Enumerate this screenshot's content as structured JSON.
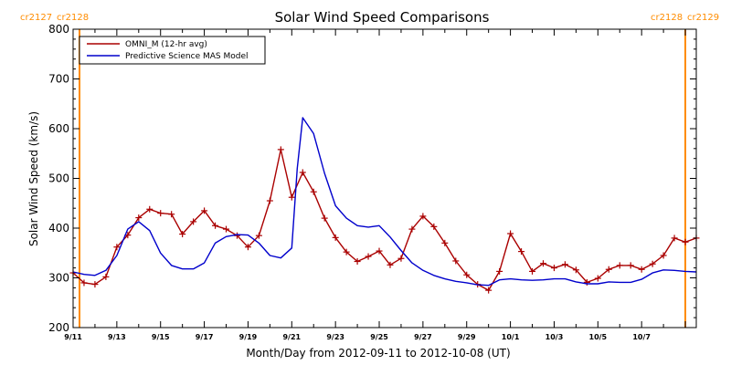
{
  "chart_data": {
    "type": "line",
    "title": "Solar Wind Speed Comparisons",
    "xlabel": "Month/Day from 2012-09-11 to 2012-10-08 (UT)",
    "ylabel": "Solar Wind Speed (km/s)",
    "ylim": [
      200,
      800
    ],
    "yticks": [
      200,
      300,
      400,
      500,
      600,
      700,
      800
    ],
    "xlim": [
      "2012-09-11 00:00",
      "2012-10-09 12:00"
    ],
    "xticks": [
      {
        "x": "2012-09-11",
        "label": "9/11"
      },
      {
        "x": "2012-09-13",
        "label": "9/13"
      },
      {
        "x": "2012-09-15",
        "label": "9/15"
      },
      {
        "x": "2012-09-17",
        "label": "9/17"
      },
      {
        "x": "2012-09-19",
        "label": "9/19"
      },
      {
        "x": "2012-09-21",
        "label": "9/21"
      },
      {
        "x": "2012-09-23",
        "label": "9/23"
      },
      {
        "x": "2012-09-25",
        "label": "9/25"
      },
      {
        "x": "2012-09-27",
        "label": "9/27"
      },
      {
        "x": "2012-09-29",
        "label": "9/29"
      },
      {
        "x": "2012-10-01",
        "label": "10/1"
      },
      {
        "x": "2012-10-03",
        "label": "10/3"
      },
      {
        "x": "2012-10-05",
        "label": "10/5"
      },
      {
        "x": "2012-10-07",
        "label": "10/7"
      }
    ],
    "legend_position": "top-left",
    "carrington_markers": [
      {
        "x": "2012-09-11 00:00",
        "labels": [
          "cr2127",
          "cr2128"
        ],
        "side": "left"
      },
      {
        "x": "2012-10-09 12:00",
        "labels": [
          "cr2128",
          "cr2129"
        ],
        "side": "right"
      }
    ],
    "series": [
      {
        "name": "OMNI_M (12-hr avg)",
        "color": "#aa0000",
        "marker": "plus",
        "x": [
          "2012-09-11 00:00",
          "2012-09-11 12:00",
          "2012-09-12 00:00",
          "2012-09-12 12:00",
          "2012-09-13 00:00",
          "2012-09-13 12:00",
          "2012-09-14 00:00",
          "2012-09-14 12:00",
          "2012-09-15 00:00",
          "2012-09-15 12:00",
          "2012-09-16 00:00",
          "2012-09-16 12:00",
          "2012-09-17 00:00",
          "2012-09-17 12:00",
          "2012-09-18 00:00",
          "2012-09-18 12:00",
          "2012-09-19 00:00",
          "2012-09-19 12:00",
          "2012-09-20 00:00",
          "2012-09-20 12:00",
          "2012-09-21 00:00",
          "2012-09-21 12:00",
          "2012-09-22 00:00",
          "2012-09-22 12:00",
          "2012-09-23 00:00",
          "2012-09-23 12:00",
          "2012-09-24 00:00",
          "2012-09-24 12:00",
          "2012-09-25 00:00",
          "2012-09-25 12:00",
          "2012-09-26 00:00",
          "2012-09-26 12:00",
          "2012-09-27 00:00",
          "2012-09-27 12:00",
          "2012-09-28 00:00",
          "2012-09-28 12:00",
          "2012-09-29 00:00",
          "2012-09-29 12:00",
          "2012-09-30 00:00",
          "2012-09-30 12:00",
          "2012-10-01 00:00",
          "2012-10-01 12:00",
          "2012-10-02 00:00",
          "2012-10-02 12:00",
          "2012-10-03 00:00",
          "2012-10-03 12:00",
          "2012-10-04 00:00",
          "2012-10-04 12:00",
          "2012-10-05 00:00",
          "2012-10-05 12:00",
          "2012-10-06 00:00",
          "2012-10-06 12:00",
          "2012-10-07 00:00",
          "2012-10-07 12:00",
          "2012-10-08 00:00",
          "2012-10-08 12:00",
          "2012-10-09 00:00",
          "2012-10-09 12:00"
        ],
        "y": [
          310,
          290,
          287,
          302,
          362,
          386,
          421,
          438,
          430,
          428,
          388,
          413,
          435,
          405,
          398,
          385,
          362,
          385,
          455,
          558,
          462,
          512,
          473,
          420,
          381,
          352,
          333,
          343,
          354,
          326,
          339,
          398,
          424,
          403,
          370,
          334,
          306,
          287,
          275,
          313,
          389,
          353,
          313,
          329,
          320,
          327,
          316,
          291,
          299,
          317,
          325,
          325,
          317,
          328,
          345,
          380,
          372,
          380
        ]
      },
      {
        "name": "Predictive Science MAS Model",
        "color": "#0000cc",
        "marker": "none",
        "x": [
          "2012-09-11 00:00",
          "2012-09-11 12:00",
          "2012-09-12 00:00",
          "2012-09-12 12:00",
          "2012-09-13 00:00",
          "2012-09-13 12:00",
          "2012-09-14 00:00",
          "2012-09-14 12:00",
          "2012-09-15 00:00",
          "2012-09-15 12:00",
          "2012-09-16 00:00",
          "2012-09-16 12:00",
          "2012-09-17 00:00",
          "2012-09-17 12:00",
          "2012-09-18 00:00",
          "2012-09-18 12:00",
          "2012-09-19 00:00",
          "2012-09-19 12:00",
          "2012-09-20 00:00",
          "2012-09-20 12:00",
          "2012-09-21 00:00",
          "2012-09-21 06:00",
          "2012-09-21 12:00",
          "2012-09-22 00:00",
          "2012-09-22 12:00",
          "2012-09-23 00:00",
          "2012-09-23 12:00",
          "2012-09-24 00:00",
          "2012-09-24 12:00",
          "2012-09-25 00:00",
          "2012-09-25 12:00",
          "2012-09-26 00:00",
          "2012-09-26 12:00",
          "2012-09-27 00:00",
          "2012-09-27 12:00",
          "2012-09-28 00:00",
          "2012-09-28 12:00",
          "2012-09-29 00:00",
          "2012-09-29 12:00",
          "2012-09-30 00:00",
          "2012-09-30 12:00",
          "2012-10-01 00:00",
          "2012-10-01 12:00",
          "2012-10-02 00:00",
          "2012-10-02 12:00",
          "2012-10-03 00:00",
          "2012-10-03 12:00",
          "2012-10-04 00:00",
          "2012-10-04 12:00",
          "2012-10-05 00:00",
          "2012-10-05 12:00",
          "2012-10-06 00:00",
          "2012-10-06 12:00",
          "2012-10-07 00:00",
          "2012-10-07 12:00",
          "2012-10-08 00:00",
          "2012-10-08 12:00",
          "2012-10-09 00:00",
          "2012-10-09 12:00"
        ],
        "y": [
          312,
          307,
          305,
          315,
          345,
          398,
          413,
          395,
          350,
          325,
          318,
          318,
          330,
          370,
          383,
          387,
          386,
          370,
          345,
          340,
          360,
          520,
          622,
          590,
          510,
          445,
          420,
          405,
          402,
          405,
          382,
          355,
          330,
          315,
          305,
          298,
          293,
          290,
          286,
          285,
          296,
          298,
          296,
          295,
          296,
          298,
          298,
          292,
          288,
          288,
          292,
          291,
          291,
          297,
          310,
          316,
          315,
          313,
          312
        ]
      }
    ]
  }
}
